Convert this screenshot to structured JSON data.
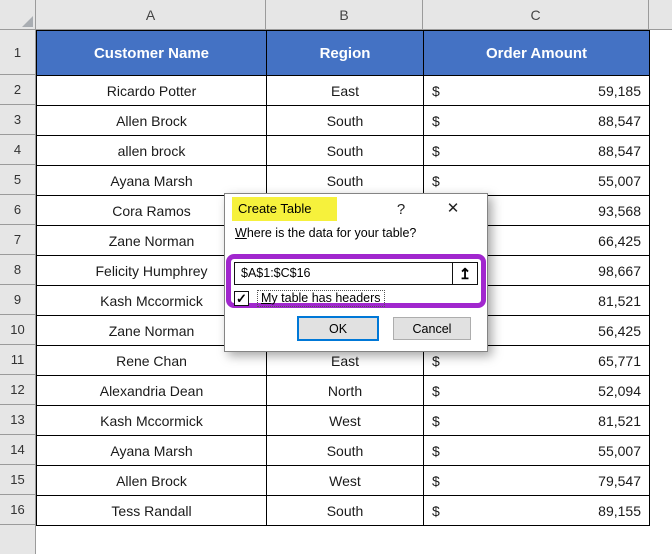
{
  "grid": {
    "column_letters": [
      "A",
      "B",
      "C"
    ],
    "row_numbers": [
      "1",
      "2",
      "3",
      "4",
      "5",
      "6",
      "7",
      "8",
      "9",
      "10",
      "11",
      "12",
      "13",
      "14",
      "15",
      "16"
    ],
    "header_cells": [
      "Customer Name",
      "Region",
      "Order Amount"
    ],
    "rows": [
      {
        "name": "Ricardo Potter",
        "region": "East",
        "currency": "$",
        "amount": "59,185"
      },
      {
        "name": "Allen Brock",
        "region": "South",
        "currency": "$",
        "amount": "88,547"
      },
      {
        "name": "allen brock",
        "region": "South",
        "currency": "$",
        "amount": "88,547"
      },
      {
        "name": "Ayana Marsh",
        "region": "South",
        "currency": "$",
        "amount": "55,007"
      },
      {
        "name": "Cora Ramos",
        "region": "",
        "currency": "$",
        "amount": "93,568"
      },
      {
        "name": "Zane Norman",
        "region": "",
        "currency": "$",
        "amount": "66,425"
      },
      {
        "name": "Felicity Humphrey",
        "region": "",
        "currency": "$",
        "amount": "98,667"
      },
      {
        "name": "Kash Mccormick",
        "region": "",
        "currency": "$",
        "amount": "81,521"
      },
      {
        "name": "Zane Norman",
        "region": "",
        "currency": "$",
        "amount": "56,425"
      },
      {
        "name": "Rene Chan",
        "region": "East",
        "currency": "$",
        "amount": "65,771"
      },
      {
        "name": "Alexandria Dean",
        "region": "North",
        "currency": "$",
        "amount": "52,094"
      },
      {
        "name": "Kash Mccormick",
        "region": "West",
        "currency": "$",
        "amount": "81,521"
      },
      {
        "name": "Ayana Marsh",
        "region": "South",
        "currency": "$",
        "amount": "55,007"
      },
      {
        "name": "Allen Brock",
        "region": "West",
        "currency": "$",
        "amount": "79,547"
      },
      {
        "name": "Tess Randall",
        "region": "South",
        "currency": "$",
        "amount": "89,155"
      }
    ]
  },
  "dialog": {
    "title": "Create Table",
    "prompt_accel": "W",
    "prompt_rest": "here is the data for your table?",
    "range_value": "$A$1:$C$16",
    "checkbox_accel": "M",
    "checkbox_rest": "y table has headers",
    "ok_label": "OK",
    "cancel_label": "Cancel"
  },
  "icons": {
    "help": "?",
    "close": "✕",
    "collapse": "↥",
    "check": "✓"
  },
  "colors": {
    "header_fill": "#4472C4",
    "header_gray": "#E6E6E6",
    "highlight_yellow": "#F6F13C",
    "annotation_purple": "#A127CE",
    "ok_border": "#0078D7",
    "button_bg": "#E1E1E1"
  }
}
